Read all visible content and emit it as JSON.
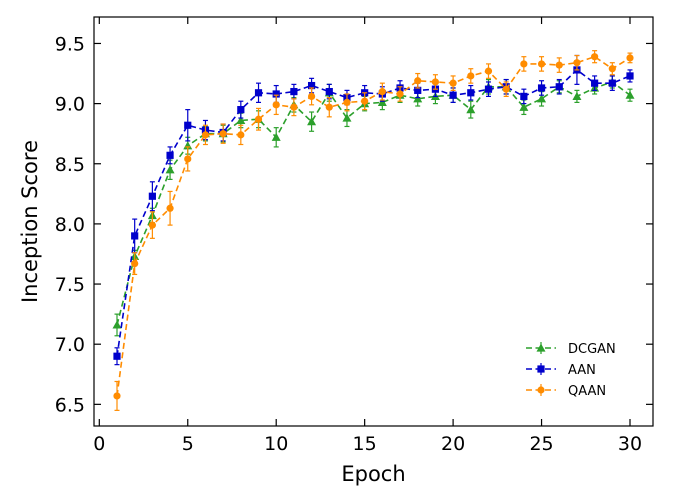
{
  "chart_data": {
    "type": "line",
    "title": "",
    "xlabel": "Epoch",
    "ylabel": "Inception Score",
    "xlim": [
      -0.3,
      31.3
    ],
    "ylim": [
      6.32,
      9.72
    ],
    "xticks": [
      0,
      5,
      10,
      15,
      20,
      25,
      30
    ],
    "yticks": [
      6.5,
      7.0,
      7.5,
      8.0,
      8.5,
      9.0,
      9.5
    ],
    "grid": false,
    "legend_position": "lower-right",
    "x": [
      1,
      2,
      3,
      4,
      5,
      6,
      7,
      8,
      9,
      10,
      11,
      12,
      13,
      14,
      15,
      16,
      17,
      18,
      19,
      20,
      21,
      22,
      23,
      24,
      25,
      26,
      27,
      28,
      29,
      30
    ],
    "series": [
      {
        "name": "DCGAN",
        "color": "#2ca02c",
        "marker": "triangle",
        "values": [
          7.16,
          7.73,
          8.07,
          8.45,
          8.65,
          8.75,
          8.75,
          8.86,
          8.87,
          8.72,
          8.99,
          8.85,
          9.09,
          8.88,
          9.0,
          9.01,
          9.07,
          9.04,
          9.06,
          9.07,
          8.95,
          9.14,
          9.14,
          8.97,
          9.04,
          9.14,
          9.06,
          9.13,
          9.18,
          9.07
        ],
        "errors": [
          0.09,
          0.05,
          0.06,
          0.08,
          0.07,
          0.06,
          0.07,
          0.06,
          0.07,
          0.08,
          0.06,
          0.08,
          0.07,
          0.07,
          0.06,
          0.06,
          0.06,
          0.06,
          0.06,
          0.06,
          0.07,
          0.06,
          0.06,
          0.06,
          0.06,
          0.05,
          0.05,
          0.05,
          0.05,
          0.05
        ]
      },
      {
        "name": "AAN",
        "color": "#0000cc",
        "marker": "square",
        "values": [
          6.9,
          7.9,
          8.23,
          8.57,
          8.82,
          8.78,
          8.76,
          8.95,
          9.09,
          9.08,
          9.1,
          9.15,
          9.1,
          9.05,
          9.09,
          9.08,
          9.13,
          9.11,
          9.12,
          9.07,
          9.09,
          9.12,
          9.14,
          9.06,
          9.13,
          9.14,
          9.28,
          9.17,
          9.17,
          9.23
        ],
        "errors": [
          0.07,
          0.14,
          0.12,
          0.07,
          0.13,
          0.08,
          0.07,
          0.07,
          0.08,
          0.07,
          0.06,
          0.06,
          0.06,
          0.06,
          0.06,
          0.06,
          0.06,
          0.06,
          0.06,
          0.06,
          0.06,
          0.06,
          0.06,
          0.06,
          0.06,
          0.06,
          0.12,
          0.06,
          0.06,
          0.05
        ]
      },
      {
        "name": "QAAN",
        "color": "#ff8c00",
        "marker": "circle",
        "values": [
          6.57,
          7.67,
          7.99,
          8.13,
          8.54,
          8.74,
          8.75,
          8.74,
          8.87,
          8.99,
          8.97,
          9.06,
          8.97,
          9.01,
          9.02,
          9.1,
          9.08,
          9.19,
          9.18,
          9.17,
          9.23,
          9.27,
          9.12,
          9.33,
          9.33,
          9.32,
          9.34,
          9.39,
          9.29,
          9.38
        ],
        "errors": [
          0.12,
          0.09,
          0.11,
          0.14,
          0.1,
          0.08,
          0.08,
          0.08,
          0.09,
          0.08,
          0.07,
          0.07,
          0.08,
          0.07,
          0.07,
          0.07,
          0.06,
          0.06,
          0.06,
          0.06,
          0.06,
          0.06,
          0.06,
          0.06,
          0.06,
          0.06,
          0.06,
          0.05,
          0.05,
          0.04
        ]
      }
    ]
  }
}
